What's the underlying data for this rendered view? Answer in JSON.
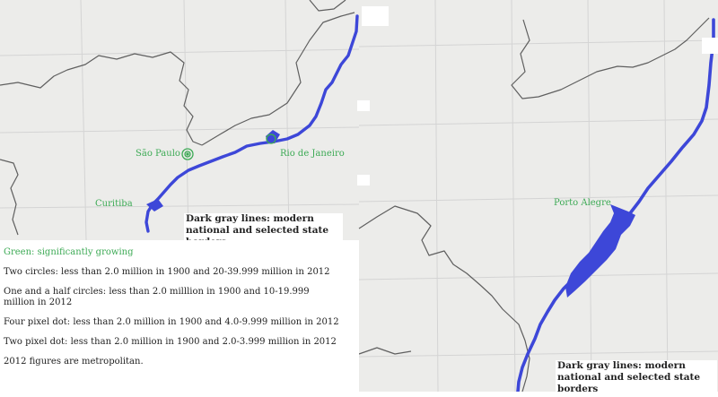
{
  "cities": {
    "sao_paulo": "São Paulo",
    "rio": "Rio de Janeiro",
    "curitiba": "Curitiba",
    "porto_alegre": "Porto Alegre"
  },
  "captions": {
    "left": "Dark gray lines: modern national and selected state borders",
    "right": "Dark gray lines: modern national and selected state borders"
  },
  "legend": {
    "title": "Green: significantly growing",
    "items": [
      "Two circles: less than 2.0 million in 1900 and 20-39.999 million in 2012",
      "One and a half circles: less than 2.0 milllion in 1900 and 10-19.999 million in 2012",
      "Four pixel dot: less than 2.0 million in 1900 and 4.0-9.999 million in 2012",
      "Two pixel dot: less than 2.0 million in 1900 and 2.0-3.999 million in 2012",
      "2012 figures are metropolitan."
    ]
  },
  "colors": {
    "paper": "#ececea",
    "grid": "#d2d2d2",
    "border": "#5f5f5f",
    "coast": "#3d47d8",
    "city_green": "#3daa55"
  }
}
